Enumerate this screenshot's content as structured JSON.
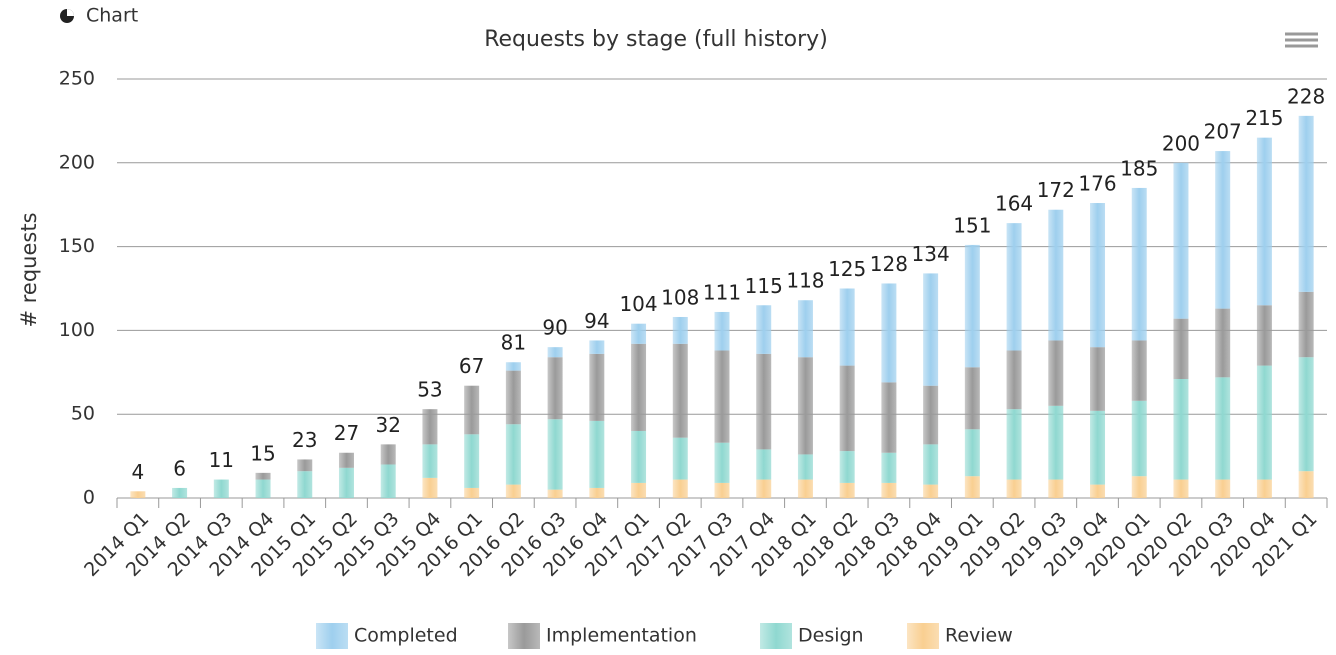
{
  "page_label": "Chart",
  "chart_data": {
    "type": "stacked_bar",
    "title": "Requests by stage (full history)",
    "ylabel": "# requests",
    "categories": [
      "2014 Q1",
      "2014 Q2",
      "2014 Q3",
      "2014 Q4",
      "2015 Q1",
      "2015 Q2",
      "2015 Q3",
      "2015 Q4",
      "2016 Q1",
      "2016 Q2",
      "2016 Q3",
      "2016 Q4",
      "2017 Q1",
      "2017 Q2",
      "2017 Q3",
      "2017 Q4",
      "2018 Q1",
      "2018 Q2",
      "2018 Q3",
      "2018 Q4",
      "2019 Q1",
      "2019 Q2",
      "2019 Q3",
      "2019 Q4",
      "2020 Q1",
      "2020 Q2",
      "2020 Q3",
      "2020 Q4",
      "2021 Q1"
    ],
    "series": [
      {
        "name": "Completed",
        "color": "#9ecfee",
        "values": [
          0,
          0,
          0,
          0,
          0,
          0,
          0,
          0,
          0,
          5,
          6,
          8,
          12,
          16,
          23,
          29,
          34,
          46,
          59,
          67,
          73,
          76,
          78,
          86,
          91,
          93,
          94,
          100,
          105
        ]
      },
      {
        "name": "Implementation",
        "color": "#9a9a9a",
        "values": [
          0,
          0,
          0,
          4,
          7,
          9,
          12,
          21,
          29,
          32,
          37,
          40,
          52,
          56,
          55,
          57,
          58,
          51,
          42,
          35,
          37,
          35,
          39,
          38,
          36,
          36,
          41,
          36,
          39
        ]
      },
      {
        "name": "Design",
        "color": "#8fd8d0",
        "values": [
          0,
          6,
          11,
          11,
          16,
          18,
          20,
          20,
          32,
          36,
          42,
          40,
          31,
          25,
          24,
          18,
          15,
          19,
          18,
          24,
          28,
          42,
          44,
          44,
          45,
          60,
          61,
          68,
          68
        ]
      },
      {
        "name": "Review",
        "color": "#f9cf91",
        "values": [
          4,
          0,
          0,
          0,
          0,
          0,
          0,
          12,
          6,
          8,
          5,
          6,
          9,
          11,
          9,
          11,
          11,
          9,
          9,
          8,
          13,
          11,
          11,
          8,
          13,
          11,
          11,
          11,
          16
        ]
      }
    ],
    "totals": [
      4,
      6,
      11,
      15,
      23,
      27,
      32,
      53,
      67,
      81,
      90,
      94,
      104,
      108,
      111,
      115,
      118,
      125,
      128,
      134,
      151,
      164,
      172,
      176,
      185,
      200,
      207,
      215,
      228
    ],
    "ylim": [
      0,
      250
    ],
    "yticks": [
      0,
      50,
      100,
      150,
      200,
      250
    ],
    "grid": true,
    "legend": "bottom"
  }
}
